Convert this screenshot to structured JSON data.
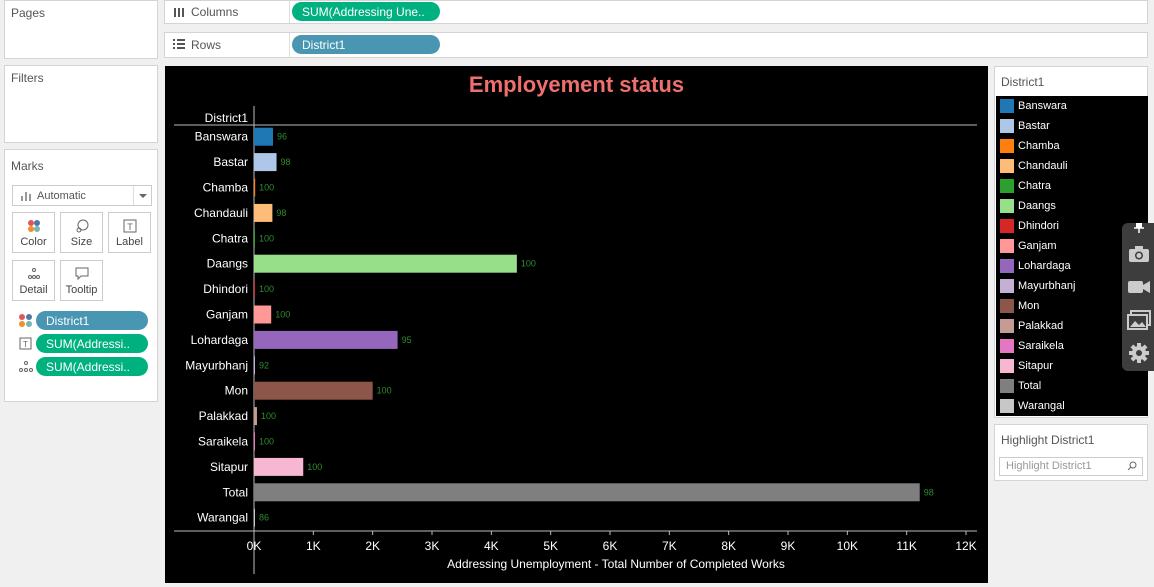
{
  "panels": {
    "pages_title": "Pages",
    "filters_title": "Filters",
    "marks_title": "Marks"
  },
  "marks": {
    "type": "Automatic",
    "buttons": {
      "color": "Color",
      "size": "Size",
      "label": "Label",
      "detail": "Detail",
      "tooltip": "Tooltip"
    },
    "fields": [
      "District1",
      "SUM(Addressi..",
      "SUM(Addressi.."
    ]
  },
  "shelves": {
    "columns_label": "Columns",
    "columns_pill": "SUM(Addressing Une..",
    "rows_label": "Rows",
    "rows_pill": "District1"
  },
  "chart_data": {
    "type": "bar",
    "title": "Employement status",
    "row_header": "District1",
    "xlabel": "Addressing Unemployment - Total Number of Completed Works",
    "xlim": [
      0,
      12000
    ],
    "ticks": [
      "0K",
      "1K",
      "2K",
      "3K",
      "4K",
      "5K",
      "6K",
      "7K",
      "8K",
      "9K",
      "10K",
      "11K",
      "12K"
    ],
    "categories": [
      "Banswara",
      "Bastar",
      "Chamba",
      "Chandauli",
      "Chatra",
      "Daangs",
      "Dhindori",
      "Ganjam",
      "Lohardaga",
      "Mayurbhanj",
      "Mon",
      "Palakkad",
      "Saraikela",
      "Sitapur",
      "Total",
      "Warangal"
    ],
    "values": [
      320,
      380,
      20,
      310,
      15,
      4430,
      15,
      290,
      2420,
      10,
      2000,
      50,
      15,
      830,
      11220,
      15
    ],
    "labels": [
      "96",
      "98",
      "100",
      "98",
      "100",
      "100",
      "100",
      "100",
      "95",
      "92",
      "100",
      "100",
      "100",
      "100",
      "98",
      "86"
    ],
    "colors": [
      "#1f77b4",
      "#aec7e8",
      "#ff7f0e",
      "#ffbb78",
      "#2ca02c",
      "#98df8a",
      "#d62728",
      "#ff9896",
      "#9467bd",
      "#c5b0d5",
      "#8c564b",
      "#c49c94",
      "#e377c2",
      "#f7b6d2",
      "#7f7f7f",
      "#c7c7c7"
    ],
    "label_color": "#2e8b2e",
    "grid": false
  },
  "legend": {
    "title": "District1",
    "items": [
      "Banswara",
      "Bastar",
      "Chamba",
      "Chandauli",
      "Chatra",
      "Daangs",
      "Dhindori",
      "Ganjam",
      "Lohardaga",
      "Mayurbhanj",
      "Mon",
      "Palakkad",
      "Saraikela",
      "Sitapur",
      "Total",
      "Warangal"
    ]
  },
  "highlight": {
    "title": "Highlight District1",
    "placeholder": "Highlight District1"
  },
  "toolbar": {
    "icons": [
      "pin-icon",
      "camera-icon",
      "video-icon",
      "image-icon",
      "gear-icon"
    ]
  }
}
